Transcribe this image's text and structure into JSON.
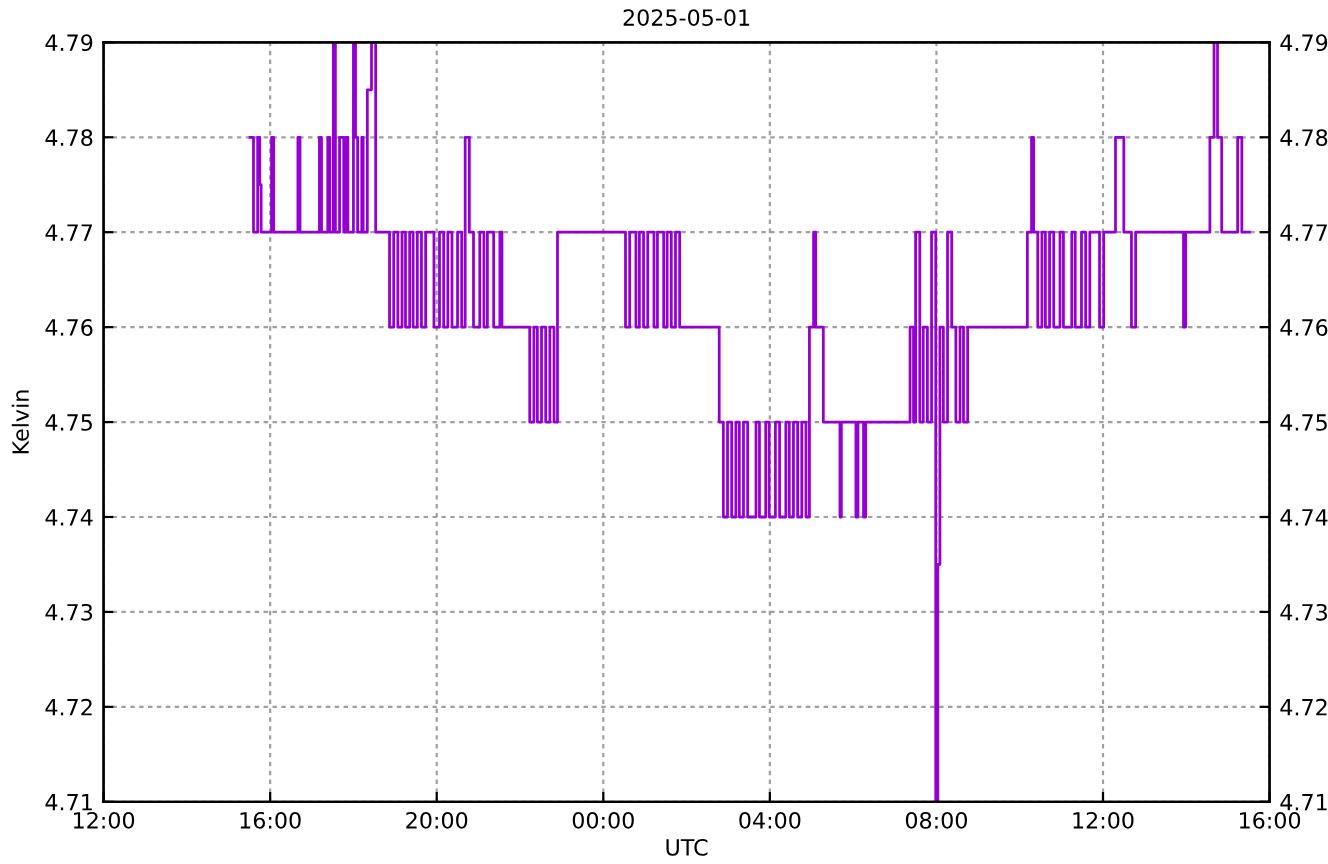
{
  "chart_data": {
    "type": "step",
    "title": "2025-05-01",
    "xlabel": "UTC",
    "ylabel": "Kelvin",
    "xlim": [
      "2025-05-01T12:00",
      "2025-05-02T16:00"
    ],
    "xticks": [
      {
        "value": "2025-05-01T12:00",
        "label": "12:00"
      },
      {
        "value": "2025-05-01T16:00",
        "label": "16:00"
      },
      {
        "value": "2025-05-01T20:00",
        "label": "20:00"
      },
      {
        "value": "2025-05-02T00:00",
        "label": "00:00"
      },
      {
        "value": "2025-05-02T04:00",
        "label": "04:00"
      },
      {
        "value": "2025-05-02T08:00",
        "label": "08:00"
      },
      {
        "value": "2025-05-02T12:00",
        "label": "12:00"
      },
      {
        "value": "2025-05-02T16:00",
        "label": "16:00"
      }
    ],
    "ylim": [
      4.71,
      4.79
    ],
    "yticks": [
      4.71,
      4.72,
      4.73,
      4.74,
      4.75,
      4.76,
      4.77,
      4.78,
      4.79
    ],
    "y2lim": [
      4.71,
      4.79
    ],
    "y2ticks": [
      4.71,
      4.72,
      4.73,
      4.74,
      4.75,
      4.76,
      4.77,
      4.78,
      4.79
    ],
    "grid": true,
    "line_style": "solid",
    "marker": "none",
    "series": [
      {
        "color": "#9400d3",
        "x": [
          "2025-05-01T15:31",
          "2025-05-01T15:36",
          "2025-05-01T15:42",
          "2025-05-01T15:45",
          "2025-05-01T15:47",
          "2025-05-01T16:02",
          "2025-05-01T16:05",
          "2025-05-01T16:40",
          "2025-05-01T16:43",
          "2025-05-01T17:11",
          "2025-05-01T17:14",
          "2025-05-01T17:23",
          "2025-05-01T17:26",
          "2025-05-01T17:31",
          "2025-05-01T17:34",
          "2025-05-01T17:40",
          "2025-05-01T17:46",
          "2025-05-01T17:49",
          "2025-05-01T17:52",
          "2025-05-01T18:00",
          "2025-05-01T18:03",
          "2025-05-01T18:06",
          "2025-05-01T18:12",
          "2025-05-01T18:14",
          "2025-05-01T18:20",
          "2025-05-01T18:26",
          "2025-05-01T18:32",
          "2025-05-01T18:52",
          "2025-05-01T18:58",
          "2025-05-01T19:04",
          "2025-05-01T19:10",
          "2025-05-01T19:15",
          "2025-05-01T19:21",
          "2025-05-01T19:26",
          "2025-05-01T19:32",
          "2025-05-01T19:38",
          "2025-05-01T19:44",
          "2025-05-01T19:56",
          "2025-05-01T20:04",
          "2025-05-01T20:10",
          "2025-05-01T20:16",
          "2025-05-01T20:22",
          "2025-05-01T20:30",
          "2025-05-01T20:36",
          "2025-05-01T20:41",
          "2025-05-01T20:47",
          "2025-05-01T20:53",
          "2025-05-01T21:02",
          "2025-05-01T21:08",
          "2025-05-01T21:13",
          "2025-05-01T21:22",
          "2025-05-01T21:31",
          "2025-05-01T21:34",
          "2025-05-01T22:14",
          "2025-05-01T22:20",
          "2025-05-01T22:25",
          "2025-05-01T22:31",
          "2025-05-01T22:37",
          "2025-05-01T22:43",
          "2025-05-01T22:49",
          "2025-05-01T22:54",
          "2025-05-02T00:32",
          "2025-05-02T00:38",
          "2025-05-02T00:47",
          "2025-05-02T00:52",
          "2025-05-02T00:58",
          "2025-05-02T01:04",
          "2025-05-02T01:13",
          "2025-05-02T01:18",
          "2025-05-02T01:27",
          "2025-05-02T01:32",
          "2025-05-02T01:38",
          "2025-05-02T01:44",
          "2025-05-02T01:50",
          "2025-05-02T02:47",
          "2025-05-02T02:53",
          "2025-05-02T02:59",
          "2025-05-02T03:05",
          "2025-05-02T03:11",
          "2025-05-02T03:16",
          "2025-05-02T03:22",
          "2025-05-02T03:28",
          "2025-05-02T03:40",
          "2025-05-02T03:45",
          "2025-05-02T03:54",
          "2025-05-02T03:59",
          "2025-05-02T04:08",
          "2025-05-02T04:14",
          "2025-05-02T04:23",
          "2025-05-02T04:28",
          "2025-05-02T04:34",
          "2025-05-02T04:40",
          "2025-05-02T04:46",
          "2025-05-02T04:52",
          "2025-05-02T04:57",
          "2025-05-02T05:03",
          "2025-05-02T05:06",
          "2025-05-02T05:17",
          "2025-05-02T05:41",
          "2025-05-02T05:43",
          "2025-05-02T06:04",
          "2025-05-02T06:07",
          "2025-05-02T06:15",
          "2025-05-02T06:18",
          "2025-05-02T07:22",
          "2025-05-02T07:27",
          "2025-05-02T07:30",
          "2025-05-02T07:36",
          "2025-05-02T07:41",
          "2025-05-02T07:47",
          "2025-05-02T07:53",
          "2025-05-02T07:59",
          "2025-05-02T08:02",
          "2025-05-02T08:05",
          "2025-05-02T08:10",
          "2025-05-02T08:16",
          "2025-05-02T08:22",
          "2025-05-02T08:28",
          "2025-05-02T08:34",
          "2025-05-02T08:39",
          "2025-05-02T08:45",
          "2025-05-02T10:11",
          "2025-05-02T10:17",
          "2025-05-02T10:20",
          "2025-05-02T10:26",
          "2025-05-02T10:32",
          "2025-05-02T10:37",
          "2025-05-02T10:43",
          "2025-05-02T10:49",
          "2025-05-02T10:58",
          "2025-05-02T11:03",
          "2025-05-02T11:15",
          "2025-05-02T11:20",
          "2025-05-02T11:29",
          "2025-05-02T11:35",
          "2025-05-02T11:41",
          "2025-05-02T11:55",
          "2025-05-02T12:01",
          "2025-05-02T12:18",
          "2025-05-02T12:30",
          "2025-05-02T12:41",
          "2025-05-02T12:47",
          "2025-05-02T13:56",
          "2025-05-02T13:59",
          "2025-05-02T14:34",
          "2025-05-02T14:40",
          "2025-05-02T14:45",
          "2025-05-02T14:51",
          "2025-05-02T15:14",
          "2025-05-02T15:20",
          "2025-05-02T15:31"
        ],
        "values": [
          4.78,
          4.77,
          4.78,
          4.775,
          4.77,
          4.78,
          4.77,
          4.78,
          4.77,
          4.78,
          4.77,
          4.78,
          4.77,
          4.79,
          4.77,
          4.78,
          4.77,
          4.78,
          4.77,
          4.79,
          4.78,
          4.77,
          4.78,
          4.77,
          4.785,
          4.79,
          4.77,
          4.76,
          4.77,
          4.76,
          4.77,
          4.76,
          4.77,
          4.76,
          4.77,
          4.76,
          4.77,
          4.76,
          4.77,
          4.76,
          4.77,
          4.76,
          4.77,
          4.76,
          4.78,
          4.77,
          4.76,
          4.77,
          4.76,
          4.77,
          4.76,
          4.77,
          4.76,
          4.75,
          4.76,
          4.75,
          4.76,
          4.75,
          4.76,
          4.75,
          4.77,
          4.76,
          4.77,
          4.76,
          4.77,
          4.76,
          4.77,
          4.76,
          4.77,
          4.76,
          4.77,
          4.76,
          4.77,
          4.76,
          4.75,
          4.74,
          4.75,
          4.74,
          4.75,
          4.74,
          4.75,
          4.74,
          4.75,
          4.74,
          4.75,
          4.74,
          4.75,
          4.74,
          4.75,
          4.74,
          4.75,
          4.74,
          4.75,
          4.74,
          4.76,
          4.77,
          4.76,
          4.75,
          4.74,
          4.75,
          4.74,
          4.75,
          4.74,
          4.75,
          4.76,
          4.75,
          4.77,
          4.75,
          4.76,
          4.75,
          4.77,
          4.71,
          4.735,
          4.76,
          4.75,
          4.77,
          4.76,
          4.75,
          4.76,
          4.75,
          4.76,
          4.77,
          4.78,
          4.77,
          4.76,
          4.77,
          4.76,
          4.77,
          4.76,
          4.77,
          4.76,
          4.77,
          4.76,
          4.77,
          4.76,
          4.77,
          4.76,
          4.77,
          4.78,
          4.77,
          4.76,
          4.77,
          4.76,
          4.77,
          4.78,
          4.79,
          4.78,
          4.77,
          4.78,
          4.77,
          4.77
        ]
      }
    ]
  }
}
